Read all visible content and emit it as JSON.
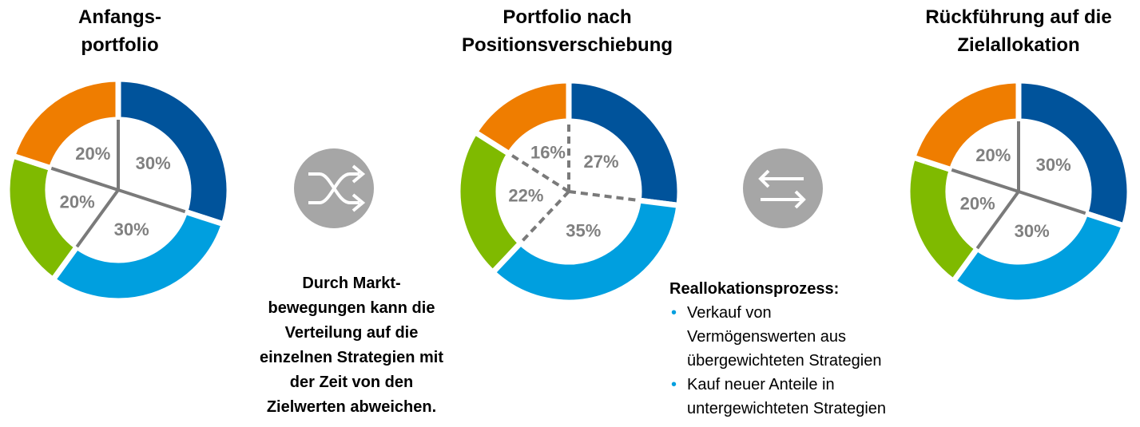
{
  "chart_data": [
    {
      "type": "donut",
      "title": "Anfangs-\nportfolio",
      "values": [
        30,
        30,
        20,
        20
      ],
      "value_labels": [
        "30%",
        "30%",
        "20%",
        "20%"
      ],
      "colors": [
        "#00539b",
        "#009fdf",
        "#7fba00",
        "#ef7d00"
      ],
      "divider_style": "solid"
    },
    {
      "type": "donut",
      "title": "Portfolio nach\nPositionsverschiebung",
      "values": [
        27,
        35,
        22,
        16
      ],
      "value_labels": [
        "27%",
        "35%",
        "22%",
        "16%"
      ],
      "colors": [
        "#00539b",
        "#009fdf",
        "#7fba00",
        "#ef7d00"
      ],
      "divider_style": "dashed"
    },
    {
      "type": "donut",
      "title": "Rückführung auf die\nZielallokation",
      "values": [
        30,
        30,
        20,
        20
      ],
      "value_labels": [
        "30%",
        "30%",
        "20%",
        "20%"
      ],
      "colors": [
        "#00539b",
        "#009fdf",
        "#7fba00",
        "#ef7d00"
      ],
      "divider_style": "solid"
    }
  ],
  "notes": {
    "left": "Durch Markt-\nbewegungen kann die\nVerteilung auf die\neinzelnen Strategien mit\nder Zeit von den\nZielwerten abweichen.",
    "right": {
      "heading": "Reallokationsprozess:",
      "bullets": [
        "Verkauf von\nVermögenswerten aus\nübergewichteten Strategien",
        "Kauf neuer Anteile in\nuntergewichteten Strategien"
      ]
    }
  }
}
